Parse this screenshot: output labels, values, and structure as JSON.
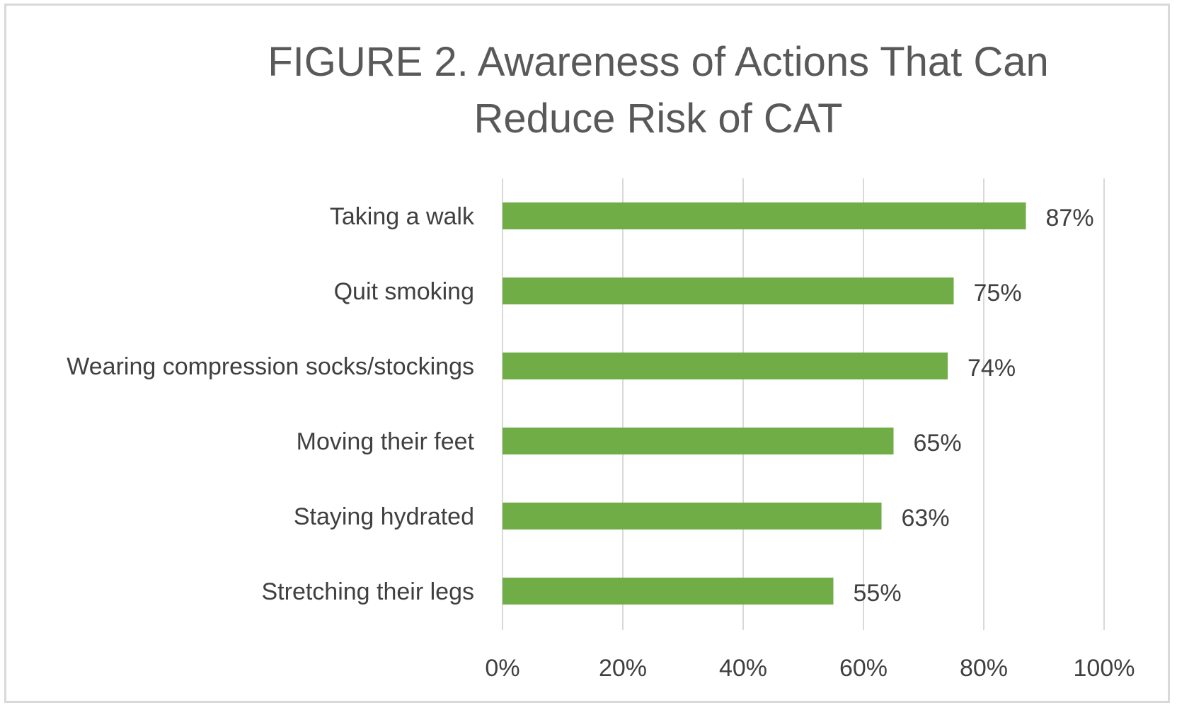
{
  "chart_data": {
    "type": "bar",
    "orientation": "horizontal",
    "title": "FIGURE 2. Awareness of Actions That Can Reduce Risk of CAT",
    "categories": [
      "Taking a walk",
      "Quit smoking",
      "Wearing compression socks/stockings",
      "Moving their feet",
      "Staying hydrated",
      "Stretching their legs"
    ],
    "values": [
      87,
      75,
      74,
      65,
      63,
      55
    ],
    "data_labels": [
      "87%",
      "75%",
      "74%",
      "65%",
      "63%",
      "55%"
    ],
    "xlim": [
      0,
      100
    ],
    "x_ticks": [
      0,
      20,
      40,
      60,
      80,
      100
    ],
    "x_tick_labels": [
      "0%",
      "20%",
      "40%",
      "60%",
      "80%",
      "100%"
    ],
    "grid": true,
    "legend": "none",
    "colors": {
      "bar": "#70ad47",
      "grid": "#d9d9d9",
      "title": "#595959",
      "text": "#404040",
      "frame": "#d9d9d9"
    }
  }
}
